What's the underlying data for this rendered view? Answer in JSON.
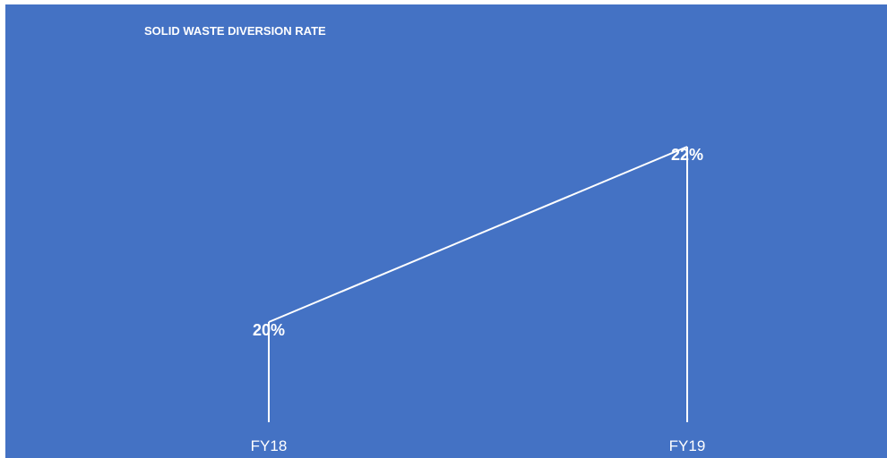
{
  "chart_data": {
    "type": "line",
    "title": "SOLID WASTE DIVERSION RATE",
    "categories": [
      "FY18",
      "FY19"
    ],
    "values": [
      20,
      22
    ],
    "value_labels": [
      "20%",
      "22%"
    ],
    "unit": "%",
    "xlabel": "",
    "ylabel": "",
    "grid": false,
    "legend": "none",
    "colors": {
      "background": "#4472c4",
      "line": "#ffffff",
      "text": "#ffffff"
    }
  }
}
